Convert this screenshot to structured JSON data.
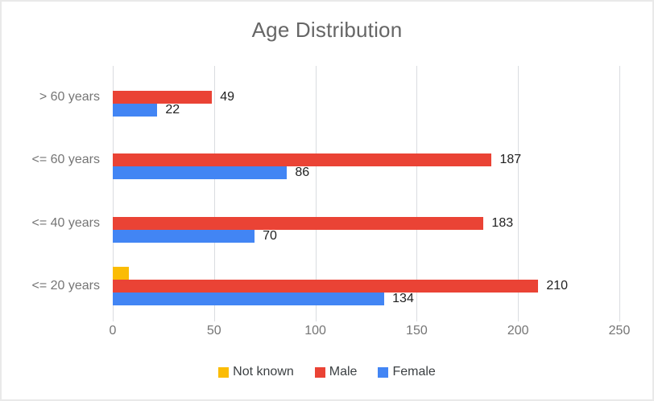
{
  "frame": {
    "background": "#ffffff",
    "border_color": "#e9e9e9"
  },
  "chart_data": {
    "type": "bar",
    "orientation": "horizontal",
    "title": "Age Distribution",
    "title_color": "#666666",
    "categories": [
      "> 60 years",
      "<= 60 years",
      "<= 40 years",
      "<= 20 years"
    ],
    "series": [
      {
        "name": "Not known",
        "color": "#FBBC04",
        "values": [
          null,
          null,
          null,
          8
        ],
        "show_labels": false
      },
      {
        "name": "Male",
        "color": "#EA4335",
        "values": [
          49,
          187,
          183,
          210
        ],
        "show_labels": true
      },
      {
        "name": "Female",
        "color": "#4285F4",
        "values": [
          22,
          86,
          70,
          134
        ],
        "show_labels": true
      }
    ],
    "x_axis": {
      "tick_labels": [
        "0",
        "50",
        "100",
        "150",
        "200",
        "250"
      ],
      "tick_values": [
        0,
        50,
        100,
        150,
        200,
        250
      ],
      "min": 0,
      "max": 250,
      "label_color": "#757575"
    },
    "category_label_color": "#757575",
    "data_label_color": "#1f1f1f",
    "gridlines": {
      "visible": true,
      "color": "#dadce0"
    },
    "legend": {
      "position": "bottom",
      "text_color": "#3c4043",
      "items": [
        "Not known",
        "Male",
        "Female"
      ]
    }
  }
}
